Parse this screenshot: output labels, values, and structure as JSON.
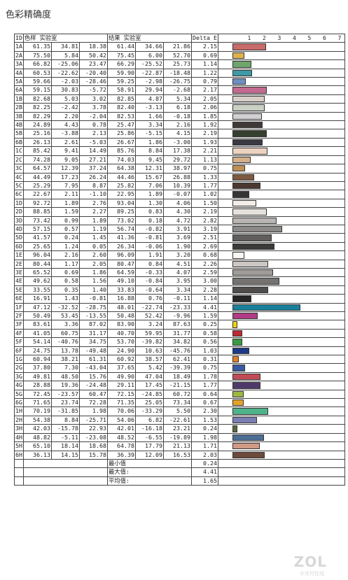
{
  "title": "色彩精确度",
  "headers": {
    "id": "ID",
    "sample": "色样 实验室",
    "result": "结果 实验室",
    "delta": "Delta E"
  },
  "watermark": "ZOL",
  "watermark_sub": "中关村在线",
  "chart_data": {
    "type": "bar",
    "title": "",
    "xlim": [
      0,
      8
    ],
    "ticks": [
      1,
      2,
      3,
      4,
      5,
      6,
      7
    ],
    "rows": [
      {
        "id": "1A",
        "sample": [
          61.35,
          34.81,
          18.38
        ],
        "result": [
          61.44,
          34.66,
          21.86
        ],
        "de": 2.15,
        "color": "#c96b6b"
      },
      {
        "id": "2A",
        "sample": [
          75.5,
          5.84,
          50.42
        ],
        "result": [
          75.45,
          6.0,
          52.7
        ],
        "de": 0.69,
        "color": "#e0b24e"
      },
      {
        "id": "3A",
        "sample": [
          66.82,
          -25.06,
          23.47
        ],
        "result": [
          66.29,
          -25.52,
          25.73
        ],
        "de": 1.14,
        "color": "#6ea56b"
      },
      {
        "id": "4A",
        "sample": [
          60.53,
          -22.62,
          -20.4
        ],
        "result": [
          59.9,
          -22.87,
          -18.48
        ],
        "de": 1.22,
        "color": "#3e9aa6"
      },
      {
        "id": "5A",
        "sample": [
          59.66,
          -2.03,
          -28.46
        ],
        "result": [
          59.25,
          -2.98,
          -26.75
        ],
        "de": 0.79,
        "color": "#6f8fc2"
      },
      {
        "id": "6A",
        "sample": [
          59.15,
          30.83,
          -5.72
        ],
        "result": [
          58.91,
          29.94,
          -2.68
        ],
        "de": 2.17,
        "color": "#c36a91"
      },
      {
        "id": "1B",
        "sample": [
          82.68,
          5.03,
          3.02
        ],
        "result": [
          82.85,
          4.87,
          5.34
        ],
        "de": 2.05,
        "color": "#d8cfc9"
      },
      {
        "id": "2B",
        "sample": [
          82.25,
          -2.42,
          3.78
        ],
        "result": [
          82.4,
          -3.13,
          6.18
        ],
        "de": 2.06,
        "color": "#cbd0c5"
      },
      {
        "id": "3B",
        "sample": [
          82.29,
          2.2,
          -2.04
        ],
        "result": [
          82.53,
          1.66,
          -0.18
        ],
        "de": 1.85,
        "color": "#d2d0d3"
      },
      {
        "id": "4B",
        "sample": [
          24.89,
          4.43,
          0.78
        ],
        "result": [
          25.47,
          3.34,
          2.16
        ],
        "de": 1.92,
        "color": "#3f3a39"
      },
      {
        "id": "5B",
        "sample": [
          25.16,
          -3.88,
          2.13
        ],
        "result": [
          25.86,
          -5.15,
          4.15
        ],
        "de": 2.19,
        "color": "#35402f"
      },
      {
        "id": "6B",
        "sample": [
          26.13,
          2.61,
          -5.03
        ],
        "result": [
          26.67,
          1.86,
          -3.0
        ],
        "de": 1.93,
        "color": "#3a3a45"
      },
      {
        "id": "1C",
        "sample": [
          85.42,
          9.41,
          14.49
        ],
        "result": [
          85.76,
          8.84,
          17.38
        ],
        "de": 2.21,
        "color": "#ecd2c0"
      },
      {
        "id": "2C",
        "sample": [
          74.28,
          9.05,
          27.21
        ],
        "result": [
          74.03,
          9.45,
          29.72
        ],
        "de": 1.13,
        "color": "#d4b08a"
      },
      {
        "id": "3C",
        "sample": [
          64.57,
          12.39,
          37.24
        ],
        "result": [
          64.38,
          12.31,
          38.97
        ],
        "de": 0.75,
        "color": "#bf9055"
      },
      {
        "id": "4C",
        "sample": [
          44.49,
          17.23,
          26.24
        ],
        "result": [
          44.46,
          15.67,
          26.88
        ],
        "de": 1.33,
        "color": "#7e5a40"
      },
      {
        "id": "5C",
        "sample": [
          25.29,
          7.95,
          8.87
        ],
        "result": [
          25.82,
          7.06,
          10.39
        ],
        "de": 1.77,
        "color": "#4a3830"
      },
      {
        "id": "6C",
        "sample": [
          22.67,
          2.11,
          -1.1
        ],
        "result": [
          22.95,
          1.89,
          -0.07
        ],
        "de": 1.02,
        "color": "#353334"
      },
      {
        "id": "1D",
        "sample": [
          92.72,
          1.89,
          2.76
        ],
        "result": [
          93.04,
          1.3,
          4.06
        ],
        "de": 1.5,
        "color": "#f3ede8"
      },
      {
        "id": "2D",
        "sample": [
          88.85,
          1.59,
          2.27
        ],
        "result": [
          89.25,
          0.83,
          4.3
        ],
        "de": 2.19,
        "color": "#e5e1dc"
      },
      {
        "id": "3D",
        "sample": [
          73.42,
          0.99,
          1.89
        ],
        "result": [
          73.02,
          0.18,
          4.72
        ],
        "de": 2.82,
        "color": "#b8b5b2"
      },
      {
        "id": "4D",
        "sample": [
          57.15,
          0.57,
          1.19
        ],
        "result": [
          56.74,
          -0.82,
          3.91
        ],
        "de": 3.19,
        "color": "#8b8a88"
      },
      {
        "id": "5D",
        "sample": [
          41.57,
          0.24,
          1.45
        ],
        "result": [
          41.36,
          -0.81,
          3.69
        ],
        "de": 2.51,
        "color": "#5f5e5c"
      },
      {
        "id": "6D",
        "sample": [
          25.65,
          1.24,
          0.05
        ],
        "result": [
          26.34,
          -0.06,
          1.9
        ],
        "de": 2.69,
        "color": "#3b3a39"
      },
      {
        "id": "1E",
        "sample": [
          96.04,
          2.16,
          2.6
        ],
        "result": [
          96.09,
          1.91,
          3.2
        ],
        "de": 0.68,
        "color": "#fbf6f2"
      },
      {
        "id": "2E",
        "sample": [
          80.44,
          1.17,
          2.05
        ],
        "result": [
          80.47,
          0.84,
          4.51
        ],
        "de": 2.26,
        "color": "#cbc7c3"
      },
      {
        "id": "3E",
        "sample": [
          65.52,
          0.69,
          1.86
        ],
        "result": [
          64.59,
          -0.33,
          4.07
        ],
        "de": 2.59,
        "color": "#9f9c99"
      },
      {
        "id": "4E",
        "sample": [
          49.62,
          0.58,
          1.56
        ],
        "result": [
          49.1,
          -0.84,
          3.95
        ],
        "de": 3.0,
        "color": "#747371"
      },
      {
        "id": "5E",
        "sample": [
          33.55,
          0.35,
          1.4
        ],
        "result": [
          33.83,
          -0.64,
          3.34
        ],
        "de": 2.28,
        "color": "#4e4d4c"
      },
      {
        "id": "6E",
        "sample": [
          16.91,
          1.43,
          -0.81
        ],
        "result": [
          16.88,
          0.76,
          -0.11
        ],
        "de": 1.14,
        "color": "#262526"
      },
      {
        "id": "1F",
        "sample": [
          47.12,
          -32.52,
          -28.75
        ],
        "result": [
          48.01,
          -22.74,
          -23.33
        ],
        "de": 4.41,
        "color": "#1a7f9a"
      },
      {
        "id": "2F",
        "sample": [
          50.49,
          53.45,
          -13.55
        ],
        "result": [
          50.48,
          52.42,
          -9.96
        ],
        "de": 1.59,
        "color": "#b33a86"
      },
      {
        "id": "3F",
        "sample": [
          83.61,
          3.36,
          87.02
        ],
        "result": [
          83.9,
          3.24,
          87.63
        ],
        "de": 0.25,
        "color": "#f1d20e"
      },
      {
        "id": "4F",
        "sample": [
          41.05,
          60.75,
          31.17
        ],
        "result": [
          40.7,
          59.95,
          31.77
        ],
        "de": 0.58,
        "color": "#bb2b33"
      },
      {
        "id": "5F",
        "sample": [
          54.14,
          -40.76,
          34.75
        ],
        "result": [
          53.7,
          -39.82,
          34.82
        ],
        "de": 0.56,
        "color": "#3c9a43"
      },
      {
        "id": "6F",
        "sample": [
          24.75,
          13.78,
          -49.48
        ],
        "result": [
          24.9,
          10.63,
          -45.76
        ],
        "de": 1.03,
        "color": "#1c3a88"
      },
      {
        "id": "1G",
        "sample": [
          60.94,
          38.21,
          61.31
        ],
        "result": [
          60.92,
          38.57,
          62.41
        ],
        "de": 0.31,
        "color": "#e0802a"
      },
      {
        "id": "2G",
        "sample": [
          37.8,
          7.3,
          -43.04
        ],
        "result": [
          37.65,
          5.42,
          -39.39
        ],
        "de": 0.75,
        "color": "#3a5aa0"
      },
      {
        "id": "3G",
        "sample": [
          49.81,
          48.5,
          15.76
        ],
        "result": [
          49.9,
          47.04,
          18.49
        ],
        "de": 1.78,
        "color": "#c24a56"
      },
      {
        "id": "4G",
        "sample": [
          28.88,
          19.36,
          -24.48
        ],
        "result": [
          29.11,
          17.45,
          -21.15
        ],
        "de": 1.77,
        "color": "#4e3a69"
      },
      {
        "id": "5G",
        "sample": [
          72.45,
          -23.57,
          60.47
        ],
        "result": [
          72.15,
          -24.85,
          60.72
        ],
        "de": 0.64,
        "color": "#9cba3f"
      },
      {
        "id": "6G",
        "sample": [
          71.65,
          23.74,
          72.28
        ],
        "result": [
          71.35,
          25.05,
          73.34
        ],
        "de": 0.67,
        "color": "#e5a32a"
      },
      {
        "id": "1H",
        "sample": [
          70.19,
          -31.85,
          1.98
        ],
        "result": [
          70.06,
          -33.29,
          5.5
        ],
        "de": 2.3,
        "color": "#4fb38a"
      },
      {
        "id": "2H",
        "sample": [
          54.38,
          8.84,
          -25.71
        ],
        "result": [
          54.06,
          6.82,
          -22.61
        ],
        "de": 1.53,
        "color": "#7a7eb5"
      },
      {
        "id": "3H",
        "sample": [
          42.03,
          -15.78,
          22.93
        ],
        "result": [
          42.01,
          -16.18,
          23.21
        ],
        "de": 0.24,
        "color": "#55693a"
      },
      {
        "id": "4H",
        "sample": [
          48.82,
          -5.11,
          -23.08
        ],
        "result": [
          48.52,
          -6.55,
          -19.89
        ],
        "de": 1.98,
        "color": "#4d6e94"
      },
      {
        "id": "5H",
        "sample": [
          65.1,
          18.14,
          18.68
        ],
        "result": [
          64.78,
          17.79,
          21.13
        ],
        "de": 1.71,
        "color": "#d09a85"
      },
      {
        "id": "6H",
        "sample": [
          36.13,
          14.15,
          15.78
        ],
        "result": [
          36.39,
          12.09,
          16.53
        ],
        "de": 2.03,
        "color": "#6e4a3a"
      }
    ],
    "summary": [
      {
        "label": "最小值",
        "value": "0.24"
      },
      {
        "label": "最大值:",
        "value": "4.41"
      },
      {
        "label": "平均值:",
        "value": "1.65"
      }
    ]
  }
}
